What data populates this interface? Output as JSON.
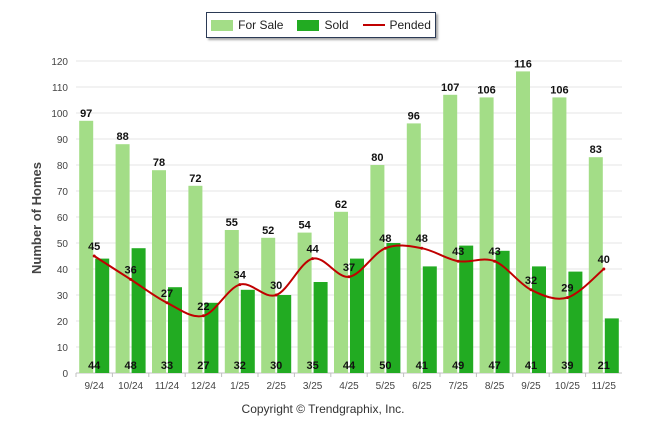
{
  "chart_data": {
    "type": "bar",
    "title": "",
    "xlabel": "",
    "ylabel": "Number of Homes",
    "ylim": [
      0,
      120
    ],
    "yticks": [
      0,
      10,
      20,
      30,
      40,
      50,
      60,
      70,
      80,
      90,
      100,
      110,
      120
    ],
    "categories": [
      "9/24",
      "10/24",
      "11/24",
      "12/24",
      "1/25",
      "2/25",
      "3/25",
      "4/25",
      "5/25",
      "6/25",
      "7/25",
      "8/25",
      "9/25",
      "10/25",
      "11/25"
    ],
    "series": [
      {
        "name": "For Sale",
        "kind": "bar",
        "color": "#a3dd87",
        "values": [
          97,
          88,
          78,
          72,
          55,
          52,
          54,
          62,
          80,
          96,
          107,
          106,
          116,
          106,
          83
        ]
      },
      {
        "name": "Sold",
        "kind": "bar",
        "color": "#22ab22",
        "values": [
          44,
          48,
          33,
          27,
          32,
          30,
          35,
          44,
          50,
          41,
          49,
          47,
          41,
          39,
          21
        ]
      },
      {
        "name": "Pended",
        "kind": "line",
        "color": "#c00000",
        "values": [
          45,
          36,
          27,
          22,
          34,
          30,
          44,
          37,
          48,
          48,
          43,
          43,
          32,
          29,
          40
        ]
      }
    ],
    "legend_position": "top-center"
  },
  "legend": {
    "for_sale": "For Sale",
    "sold": "Sold",
    "pended": "Pended"
  },
  "footer": {
    "copyright": "Copyright © Trendgraphix, Inc."
  }
}
